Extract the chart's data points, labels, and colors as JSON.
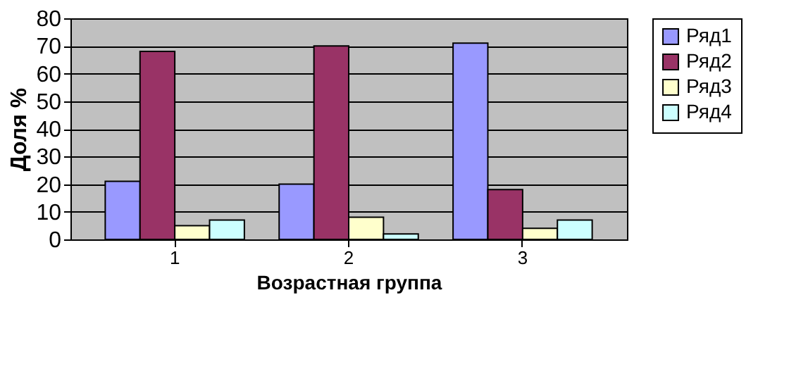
{
  "chart_data": {
    "type": "bar",
    "xlabel": "Возрастная группа",
    "ylabel": "Доля %",
    "categories": [
      "1",
      "2",
      "3"
    ],
    "series": [
      {
        "name": "Ряд1",
        "color": "#9999ff",
        "values": [
          21,
          20,
          71
        ]
      },
      {
        "name": "Ряд2",
        "color": "#993366",
        "values": [
          68,
          70,
          18
        ]
      },
      {
        "name": "Ряд3",
        "color": "#ffffcc",
        "values": [
          5,
          8,
          4
        ]
      },
      {
        "name": "Ряд4",
        "color": "#ccffff",
        "values": [
          7,
          2,
          7
        ]
      }
    ],
    "ylim": [
      0,
      80
    ],
    "yticks": [
      0,
      10,
      20,
      30,
      40,
      50,
      60,
      70,
      80
    ],
    "grid": "y",
    "legend": "right"
  }
}
